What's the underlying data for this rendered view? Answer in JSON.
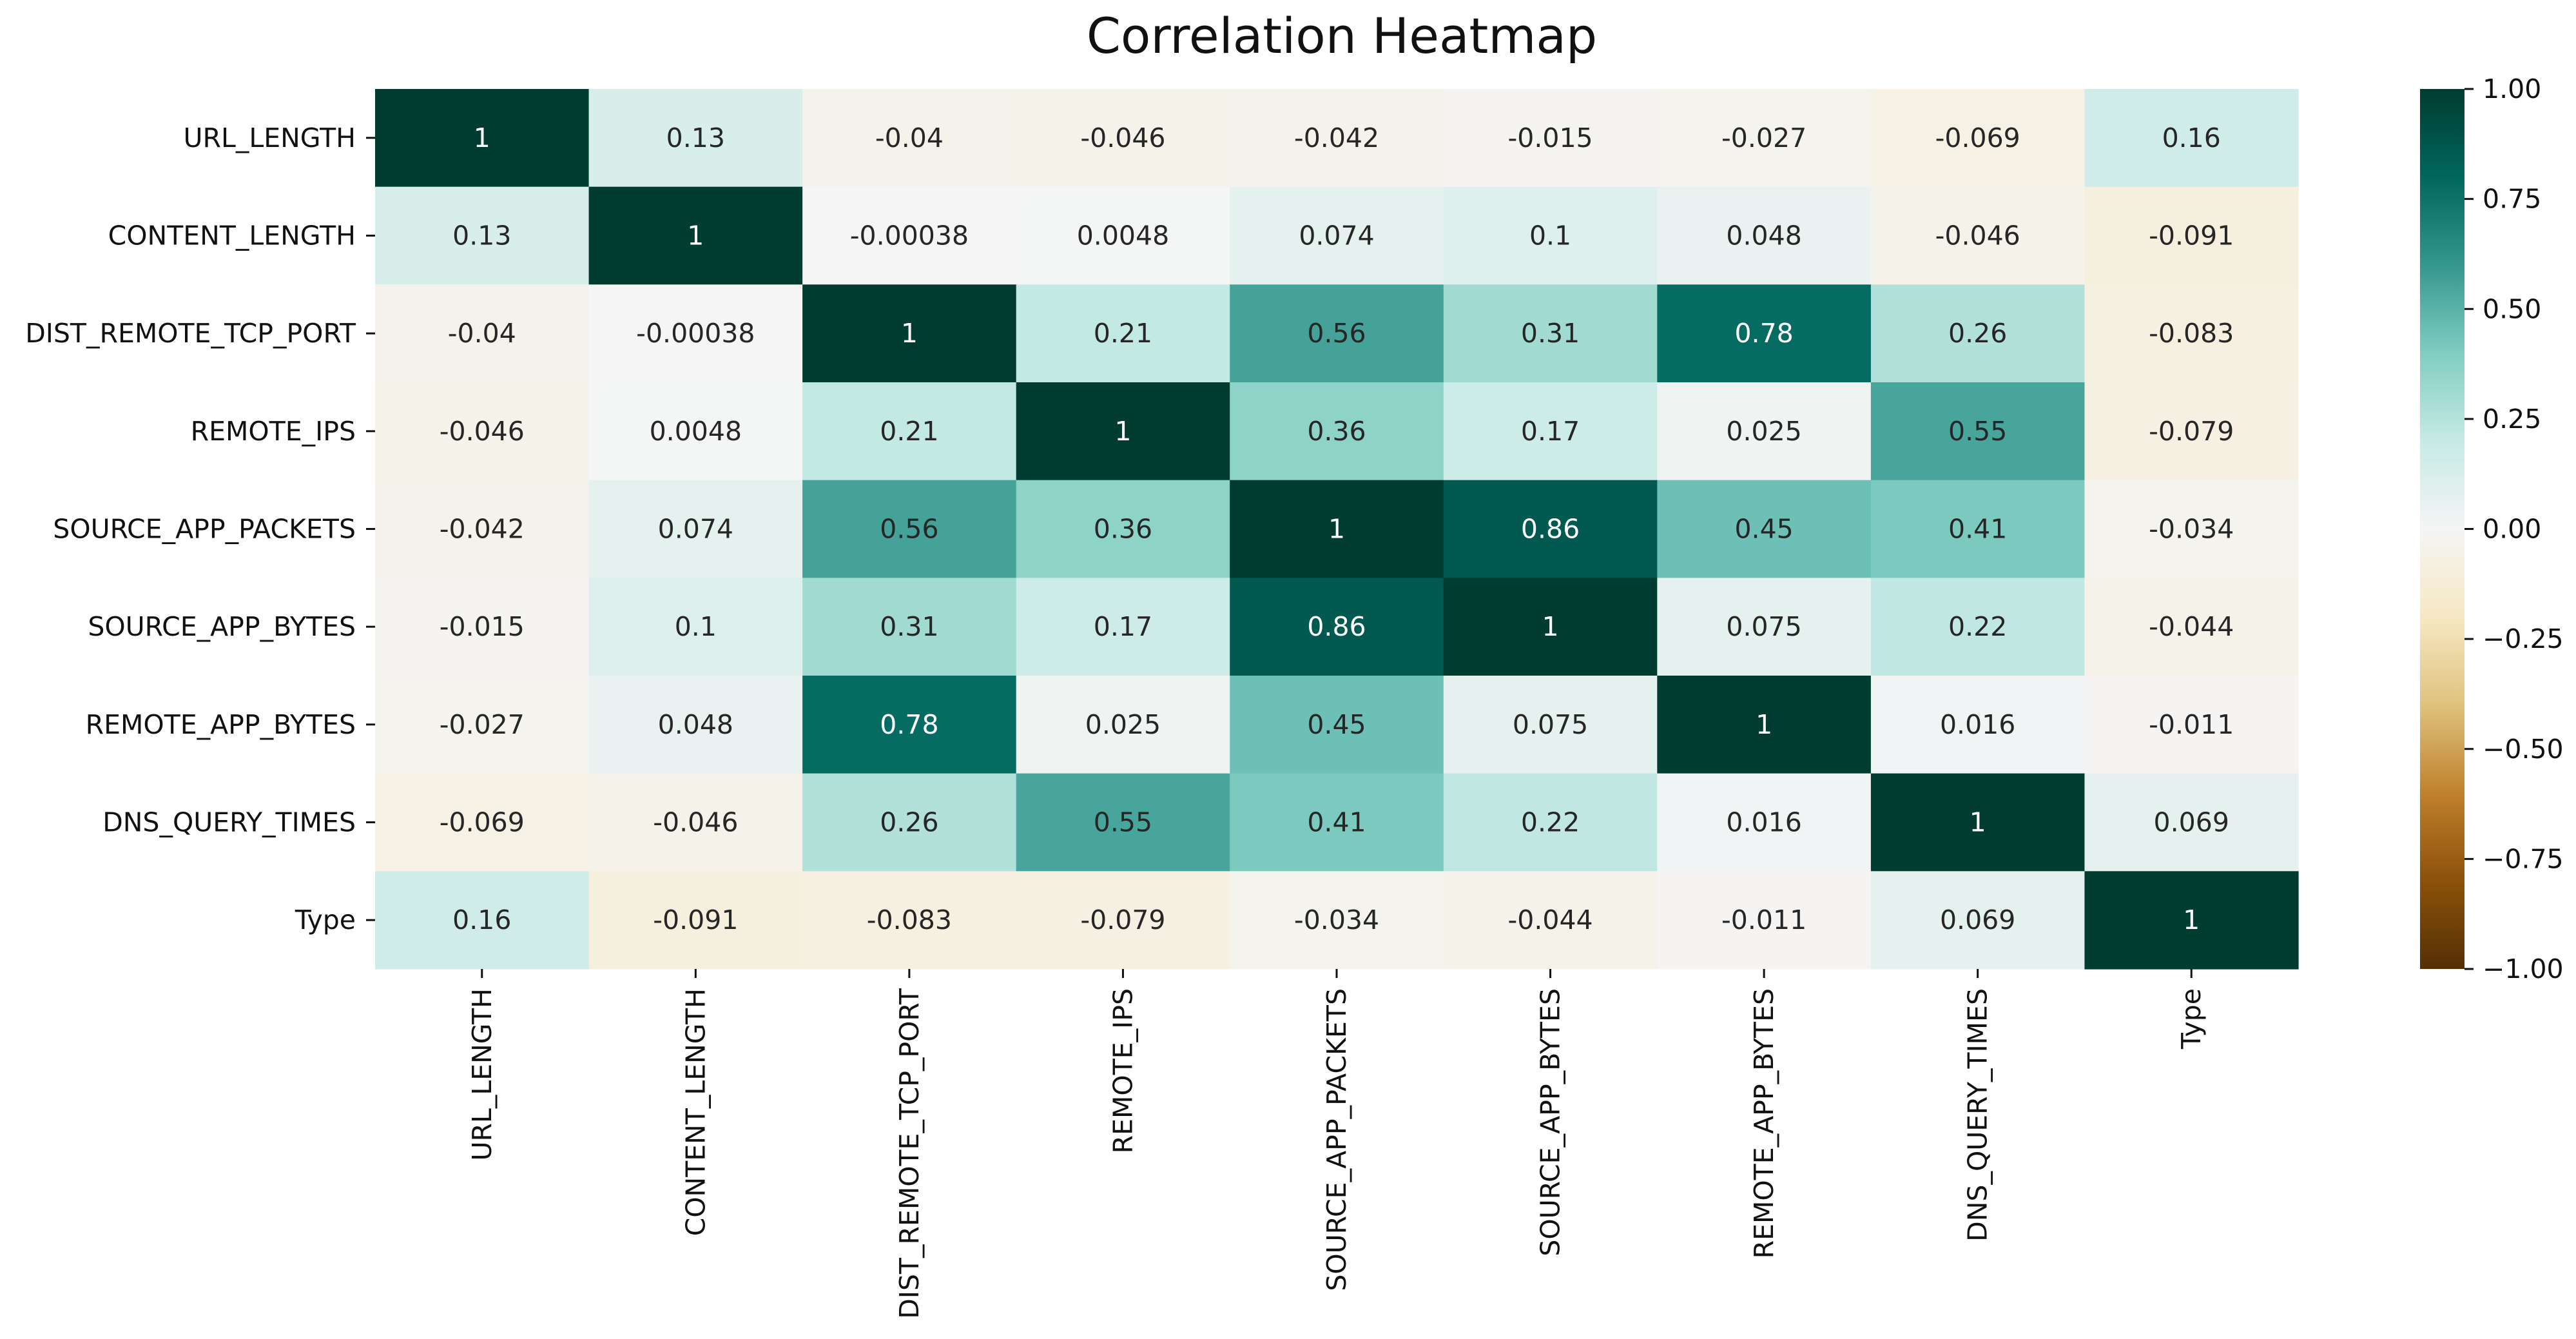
{
  "chart_data": {
    "type": "heatmap",
    "title": "Correlation Heatmap",
    "xlabel": "",
    "ylabel": "",
    "labels": [
      "URL_LENGTH",
      "CONTENT_LENGTH",
      "DIST_REMOTE_TCP_PORT",
      "REMOTE_IPS",
      "SOURCE_APP_PACKETS",
      "SOURCE_APP_BYTES",
      "REMOTE_APP_BYTES",
      "DNS_QUERY_TIMES",
      "Type"
    ],
    "values": [
      [
        1,
        0.13,
        -0.04,
        -0.046,
        -0.042,
        -0.015,
        -0.027,
        -0.069,
        0.16
      ],
      [
        0.13,
        1,
        -0.00038,
        0.0048,
        0.074,
        0.1,
        0.048,
        -0.046,
        -0.091
      ],
      [
        -0.04,
        -0.00038,
        1,
        0.21,
        0.56,
        0.31,
        0.78,
        0.26,
        -0.083
      ],
      [
        -0.046,
        0.0048,
        0.21,
        1,
        0.36,
        0.17,
        0.025,
        0.55,
        -0.079
      ],
      [
        -0.042,
        0.074,
        0.56,
        0.36,
        1,
        0.86,
        0.45,
        0.41,
        -0.034
      ],
      [
        -0.015,
        0.1,
        0.31,
        0.17,
        0.86,
        1,
        0.075,
        0.22,
        -0.044
      ],
      [
        -0.027,
        0.048,
        0.78,
        0.025,
        0.45,
        0.075,
        1,
        0.016,
        -0.011
      ],
      [
        -0.069,
        -0.046,
        0.26,
        0.55,
        0.41,
        0.22,
        0.016,
        1,
        0.069
      ],
      [
        0.16,
        -0.091,
        -0.083,
        -0.079,
        -0.034,
        -0.044,
        -0.011,
        0.069,
        1
      ]
    ],
    "annotations": [
      [
        "1",
        "0.13",
        "-0.04",
        "-0.046",
        "-0.042",
        "-0.015",
        "-0.027",
        "-0.069",
        "0.16"
      ],
      [
        "0.13",
        "1",
        "-0.00038",
        "0.0048",
        "0.074",
        "0.1",
        "0.048",
        "-0.046",
        "-0.091"
      ],
      [
        "-0.04",
        "-0.00038",
        "1",
        "0.21",
        "0.56",
        "0.31",
        "0.78",
        "0.26",
        "-0.083"
      ],
      [
        "-0.046",
        "0.0048",
        "0.21",
        "1",
        "0.36",
        "0.17",
        "0.025",
        "0.55",
        "-0.079"
      ],
      [
        "-0.042",
        "0.074",
        "0.56",
        "0.36",
        "1",
        "0.86",
        "0.45",
        "0.41",
        "-0.034"
      ],
      [
        "-0.015",
        "0.1",
        "0.31",
        "0.17",
        "0.86",
        "1",
        "0.075",
        "0.22",
        "-0.044"
      ],
      [
        "-0.027",
        "0.048",
        "0.78",
        "0.025",
        "0.45",
        "0.075",
        "1",
        "0.016",
        "-0.011"
      ],
      [
        "-0.069",
        "-0.046",
        "0.26",
        "0.55",
        "0.41",
        "0.22",
        "0.016",
        "1",
        "0.069"
      ],
      [
        "0.16",
        "-0.091",
        "-0.083",
        "-0.079",
        "-0.034",
        "-0.044",
        "-0.011",
        "0.069",
        "1"
      ]
    ],
    "colormap": "BrBG",
    "vmin": -1,
    "vmax": 1,
    "colorbar_ticks": [
      1,
      0.75,
      0.5,
      0.25,
      0,
      -0.25,
      -0.5,
      -0.75,
      -1
    ],
    "colorbar_tick_labels": [
      "1.00",
      "0.75",
      "0.50",
      "0.25",
      "0.00",
      "−0.25",
      "−0.50",
      "−0.75",
      "−1.00"
    ],
    "colorbar_position": "right",
    "grid": false
  }
}
